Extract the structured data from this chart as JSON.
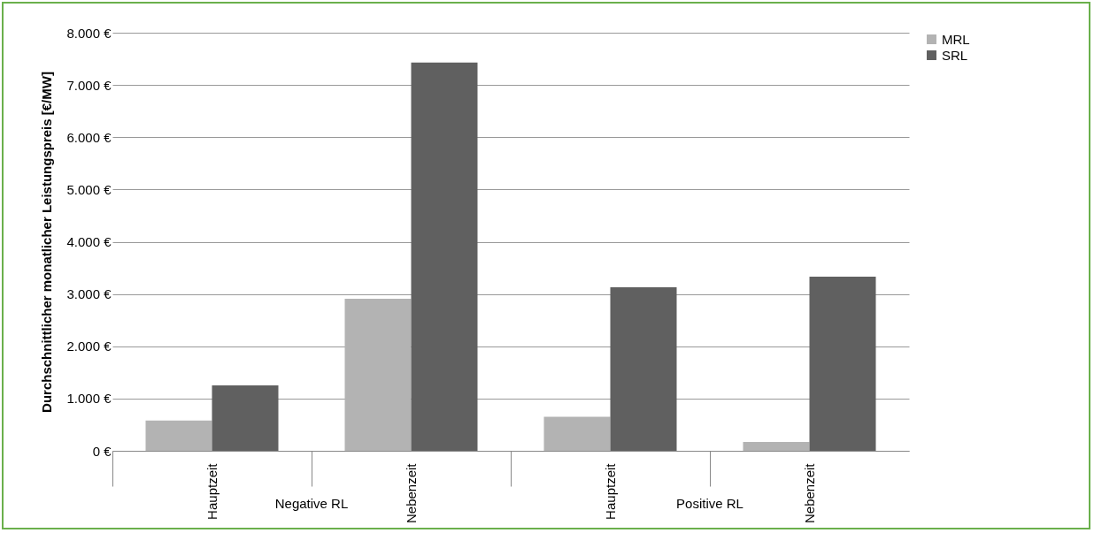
{
  "chart_data": {
    "type": "bar",
    "ylabel": "Durchschnittlicher monatlicher Leistungspreis [€/MW]",
    "categories": [
      "Hauptzeit",
      "Nebenzeit",
      "Hauptzeit",
      "Nebenzeit"
    ],
    "annotations": [
      "Negative RL",
      "Positive RL"
    ],
    "series": [
      {
        "name": "MRL",
        "color": "#b3b3b3",
        "values": [
          580,
          2910,
          650,
          170
        ]
      },
      {
        "name": "SRL",
        "color": "#606060",
        "values": [
          1250,
          7430,
          3130,
          3330
        ]
      }
    ],
    "ylim": [
      0,
      8000
    ],
    "yticks": [
      {
        "value": 0,
        "label": "0 €"
      },
      {
        "value": 1000,
        "label": "1.000 €"
      },
      {
        "value": 2000,
        "label": "2.000 €"
      },
      {
        "value": 3000,
        "label": "3.000 €"
      },
      {
        "value": 4000,
        "label": "4.000 €"
      },
      {
        "value": 5000,
        "label": "5.000 €"
      },
      {
        "value": 6000,
        "label": "6.000 €"
      },
      {
        "value": 7000,
        "label": "7.000 €"
      },
      {
        "value": 8000,
        "label": "8.000 €"
      }
    ],
    "grid": "y",
    "legend": "right"
  }
}
